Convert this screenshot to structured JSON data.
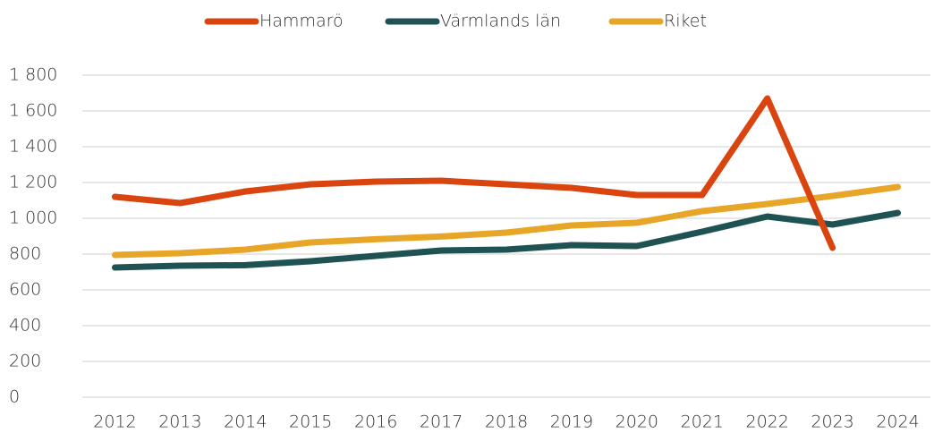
{
  "chart_data": {
    "type": "line",
    "categories": [
      "2012",
      "2013",
      "2014",
      "2015",
      "2016",
      "2017",
      "2018",
      "2019",
      "2020",
      "2021",
      "2022",
      "2023",
      "2024"
    ],
    "series": [
      {
        "name": "Hammarö",
        "color": "#d9440f",
        "values": [
          1120,
          1085,
          1150,
          1190,
          1205,
          1210,
          1190,
          1170,
          1130,
          1130,
          1670,
          835,
          null
        ]
      },
      {
        "name": "Värmlands län",
        "color": "#1e5253",
        "values": [
          725,
          735,
          738,
          760,
          790,
          820,
          825,
          850,
          845,
          925,
          1010,
          965,
          1030
        ]
      },
      {
        "name": "Riket",
        "color": "#e8a628",
        "values": [
          795,
          805,
          825,
          865,
          883,
          898,
          920,
          960,
          975,
          1040,
          1080,
          1125,
          1175
        ]
      }
    ],
    "ylim": [
      0,
      1800
    ],
    "yticks": [
      0,
      200,
      400,
      600,
      800,
      {
        "value": 1000,
        "label": "1 000"
      },
      {
        "value": 1200,
        "label": "1 200"
      },
      {
        "value": 1400,
        "label": "1 400"
      },
      {
        "value": 1600,
        "label": "1 600"
      },
      {
        "value": 1800,
        "label": "1 800"
      }
    ],
    "grid": true,
    "legend": "top"
  }
}
